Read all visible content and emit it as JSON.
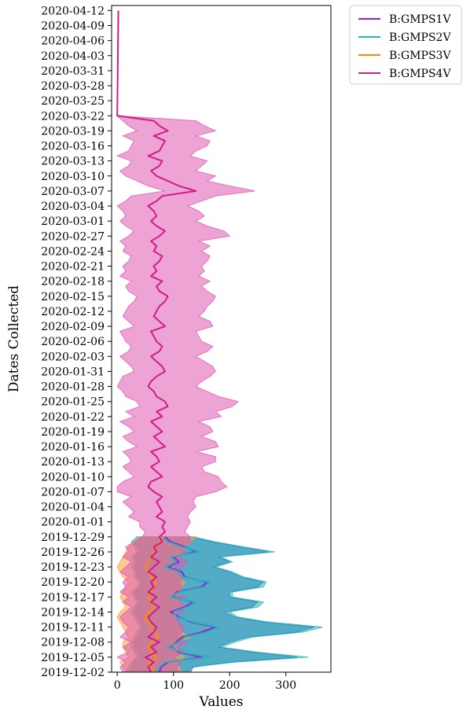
{
  "chart_data": {
    "type": "line",
    "orientation": "horizontal-time",
    "xlabel": "Values",
    "ylabel": "Dates Collected",
    "xlim": [
      -10,
      380
    ],
    "ylim": [
      "2019-12-02",
      "2020-04-13"
    ],
    "x_ticks": [
      0,
      100,
      200,
      300
    ],
    "y_ticks": [
      "2019-12-02",
      "2019-12-05",
      "2019-12-08",
      "2019-12-11",
      "2019-12-14",
      "2019-12-17",
      "2019-12-20",
      "2019-12-23",
      "2019-12-26",
      "2019-12-29",
      "2020-01-01",
      "2020-01-04",
      "2020-01-07",
      "2020-01-10",
      "2020-01-13",
      "2020-01-16",
      "2020-01-19",
      "2020-01-22",
      "2020-01-25",
      "2020-01-28",
      "2020-01-31",
      "2020-02-03",
      "2020-02-06",
      "2020-02-09",
      "2020-02-12",
      "2020-02-15",
      "2020-02-18",
      "2020-02-21",
      "2020-02-24",
      "2020-02-27",
      "2020-03-01",
      "2020-03-04",
      "2020-03-07",
      "2020-03-10",
      "2020-03-13",
      "2020-03-16",
      "2020-03-19",
      "2020-03-22",
      "2020-03-25",
      "2020-03-28",
      "2020-03-31",
      "2020-04-03",
      "2020-04-06",
      "2020-04-09",
      "2020-04-12"
    ],
    "grid": false,
    "legend_position": "outside-top-right",
    "series": [
      {
        "name": "B:GMPS1V",
        "color": "#9b1fd6",
        "fill_color": "#3050b0",
        "dates": [
          "2019-12-02",
          "2019-12-03",
          "2019-12-04",
          "2019-12-05",
          "2019-12-06",
          "2019-12-07",
          "2019-12-08",
          "2019-12-09",
          "2019-12-10",
          "2019-12-11",
          "2019-12-12",
          "2019-12-13",
          "2019-12-14",
          "2019-12-15",
          "2019-12-16",
          "2019-12-17",
          "2019-12-18",
          "2019-12-19",
          "2019-12-20",
          "2019-12-21",
          "2019-12-22",
          "2019-12-23",
          "2019-12-24",
          "2019-12-25",
          "2019-12-26",
          "2019-12-27",
          "2019-12-28",
          "2019-12-29"
        ],
        "mean": [
          75,
          78,
          90,
          150,
          110,
          95,
          105,
          115,
          150,
          175,
          130,
          110,
          95,
          120,
          135,
          100,
          105,
          150,
          160,
          120,
          115,
          90,
          110,
          100,
          140,
          120,
          95,
          85
        ],
        "lower": [
          20,
          25,
          30,
          40,
          35,
          30,
          30,
          35,
          40,
          45,
          40,
          35,
          30,
          35,
          40,
          35,
          30,
          40,
          45,
          35,
          35,
          30,
          35,
          30,
          40,
          35,
          30,
          40
        ],
        "upper": [
          130,
          135,
          200,
          320,
          240,
          180,
          200,
          230,
          320,
          350,
          260,
          210,
          190,
          240,
          250,
          200,
          200,
          250,
          260,
          220,
          200,
          170,
          200,
          180,
          270,
          220,
          170,
          130
        ]
      },
      {
        "name": "B:GMPS2V",
        "color": "#26b5b8",
        "fill_color": "#26b5b8",
        "dates": [
          "2019-12-02",
          "2019-12-03",
          "2019-12-04",
          "2019-12-05",
          "2019-12-06",
          "2019-12-07",
          "2019-12-08",
          "2019-12-09",
          "2019-12-10",
          "2019-12-11",
          "2019-12-12",
          "2019-12-13",
          "2019-12-14",
          "2019-12-15",
          "2019-12-16",
          "2019-12-17",
          "2019-12-18",
          "2019-12-19",
          "2019-12-20",
          "2019-12-21",
          "2019-12-22",
          "2019-12-23",
          "2019-12-24",
          "2019-12-25",
          "2019-12-26",
          "2019-12-27",
          "2019-12-28",
          "2019-12-29"
        ],
        "mean": [
          70,
          75,
          85,
          165,
          115,
          90,
          110,
          120,
          160,
          180,
          135,
          105,
          100,
          125,
          140,
          95,
          110,
          155,
          165,
          115,
          110,
          85,
          105,
          95,
          150,
          115,
          90,
          80
        ],
        "lower": [
          15,
          20,
          25,
          35,
          30,
          25,
          25,
          30,
          35,
          40,
          35,
          30,
          25,
          30,
          35,
          30,
          25,
          35,
          40,
          30,
          30,
          25,
          30,
          25,
          35,
          30,
          25,
          35
        ],
        "upper": [
          125,
          130,
          210,
          340,
          250,
          185,
          210,
          240,
          330,
          365,
          270,
          215,
          200,
          250,
          260,
          205,
          205,
          260,
          265,
          225,
          205,
          175,
          205,
          185,
          280,
          225,
          175,
          135
        ]
      },
      {
        "name": "B:GMPS3V",
        "color": "#ff8c00",
        "fill_color": "#ffa040",
        "dates": [
          "2019-12-02",
          "2019-12-03",
          "2019-12-04",
          "2019-12-05",
          "2019-12-06",
          "2019-12-07",
          "2019-12-08",
          "2019-12-09",
          "2019-12-10",
          "2019-12-11",
          "2019-12-12",
          "2019-12-13",
          "2019-12-14",
          "2019-12-15",
          "2019-12-16",
          "2019-12-17",
          "2019-12-18",
          "2019-12-19",
          "2019-12-20",
          "2019-12-21",
          "2019-12-22",
          "2019-12-23",
          "2019-12-24",
          "2019-12-25",
          "2019-12-26",
          "2019-12-27",
          "2019-12-28",
          "2019-12-29"
        ],
        "mean": [
          65,
          60,
          55,
          70,
          60,
          55,
          60,
          75,
          65,
          60,
          55,
          50,
          55,
          65,
          60,
          55,
          60,
          65,
          70,
          60,
          55,
          50,
          55,
          60,
          65,
          70,
          75,
          80
        ],
        "lower": [
          15,
          10,
          5,
          20,
          15,
          10,
          10,
          20,
          15,
          10,
          5,
          0,
          5,
          15,
          10,
          5,
          10,
          15,
          20,
          10,
          5,
          0,
          5,
          10,
          15,
          20,
          30,
          40
        ],
        "upper": [
          115,
          110,
          105,
          120,
          110,
          105,
          110,
          130,
          115,
          110,
          105,
          100,
          105,
          115,
          110,
          105,
          110,
          115,
          120,
          110,
          105,
          100,
          105,
          110,
          115,
          120,
          130,
          140
        ]
      },
      {
        "name": "B:GMPS4V",
        "color": "#d01c8b",
        "fill_color": "#de5ab0",
        "dates": [
          "2019-12-02",
          "2019-12-03",
          "2019-12-04",
          "2019-12-05",
          "2019-12-06",
          "2019-12-07",
          "2019-12-08",
          "2019-12-09",
          "2019-12-10",
          "2019-12-11",
          "2019-12-12",
          "2019-12-13",
          "2019-12-14",
          "2019-12-15",
          "2019-12-16",
          "2019-12-17",
          "2019-12-18",
          "2019-12-19",
          "2019-12-20",
          "2019-12-21",
          "2019-12-22",
          "2019-12-23",
          "2019-12-24",
          "2019-12-25",
          "2019-12-26",
          "2019-12-27",
          "2019-12-28",
          "2019-12-29",
          "2019-12-30",
          "2019-12-31",
          "2020-01-01",
          "2020-01-02",
          "2020-01-03",
          "2020-01-04",
          "2020-01-05",
          "2020-01-06",
          "2020-01-07",
          "2020-01-08",
          "2020-01-09",
          "2020-01-10",
          "2020-01-11",
          "2020-01-12",
          "2020-01-13",
          "2020-01-14",
          "2020-01-15",
          "2020-01-16",
          "2020-01-17",
          "2020-01-18",
          "2020-01-19",
          "2020-01-20",
          "2020-01-21",
          "2020-01-22",
          "2020-01-23",
          "2020-01-24",
          "2020-01-25",
          "2020-01-26",
          "2020-01-27",
          "2020-01-28",
          "2020-01-29",
          "2020-01-30",
          "2020-01-31",
          "2020-02-01",
          "2020-02-02",
          "2020-02-03",
          "2020-02-04",
          "2020-02-05",
          "2020-02-06",
          "2020-02-07",
          "2020-02-08",
          "2020-02-09",
          "2020-02-10",
          "2020-02-11",
          "2020-02-12",
          "2020-02-13",
          "2020-02-14",
          "2020-02-15",
          "2020-02-16",
          "2020-02-17",
          "2020-02-18",
          "2020-02-19",
          "2020-02-20",
          "2020-02-21",
          "2020-02-22",
          "2020-02-23",
          "2020-02-24",
          "2020-02-25",
          "2020-02-26",
          "2020-02-27",
          "2020-02-28",
          "2020-02-29",
          "2020-03-01",
          "2020-03-02",
          "2020-03-03",
          "2020-03-04",
          "2020-03-05",
          "2020-03-06",
          "2020-03-07",
          "2020-03-08",
          "2020-03-09",
          "2020-03-10",
          "2020-03-11",
          "2020-03-12",
          "2020-03-13",
          "2020-03-14",
          "2020-03-15",
          "2020-03-16",
          "2020-03-17",
          "2020-03-18",
          "2020-03-19",
          "2020-03-20",
          "2020-03-21",
          "2020-03-22",
          "2020-04-12"
        ],
        "mean": [
          60,
          55,
          65,
          50,
          70,
          60,
          75,
          55,
          65,
          70,
          60,
          55,
          65,
          75,
          60,
          70,
          55,
          65,
          60,
          70,
          55,
          65,
          75,
          60,
          70,
          65,
          80,
          75,
          85,
          80,
          85,
          70,
          80,
          75,
          70,
          80,
          65,
          55,
          60,
          80,
          70,
          60,
          75,
          70,
          60,
          85,
          75,
          65,
          80,
          70,
          60,
          80,
          70,
          90,
          85,
          70,
          65,
          55,
          60,
          70,
          85,
          80,
          70,
          60,
          75,
          80,
          70,
          65,
          60,
          85,
          75,
          65,
          70,
          75,
          85,
          90,
          75,
          70,
          80,
          60,
          70,
          65,
          75,
          80,
          65,
          70,
          60,
          75,
          85,
          70,
          60,
          70,
          65,
          55,
          70,
          80,
          140,
          110,
          90,
          70,
          60,
          75,
          80,
          55,
          75,
          80,
          85,
          65,
          90,
          75,
          65,
          0,
          2
        ],
        "lower": [
          10,
          5,
          15,
          0,
          20,
          10,
          25,
          5,
          15,
          20,
          10,
          5,
          15,
          25,
          10,
          20,
          5,
          15,
          10,
          20,
          5,
          15,
          25,
          10,
          20,
          15,
          30,
          45,
          50,
          40,
          40,
          20,
          30,
          20,
          10,
          25,
          0,
          0,
          10,
          30,
          20,
          10,
          25,
          20,
          10,
          35,
          20,
          10,
          30,
          20,
          5,
          30,
          15,
          40,
          35,
          15,
          10,
          0,
          5,
          10,
          30,
          25,
          15,
          5,
          20,
          25,
          15,
          10,
          5,
          30,
          20,
          10,
          15,
          20,
          30,
          35,
          20,
          15,
          25,
          5,
          15,
          10,
          20,
          25,
          10,
          15,
          5,
          20,
          30,
          15,
          5,
          15,
          10,
          0,
          15,
          25,
          85,
          55,
          35,
          15,
          5,
          20,
          25,
          0,
          20,
          25,
          30,
          10,
          35,
          20,
          10,
          0,
          2
        ],
        "upper": [
          110,
          105,
          115,
          100,
          120,
          110,
          125,
          105,
          115,
          120,
          110,
          105,
          115,
          125,
          110,
          120,
          105,
          115,
          110,
          120,
          105,
          115,
          125,
          110,
          120,
          115,
          130,
          130,
          120,
          125,
          130,
          125,
          130,
          140,
          135,
          140,
          175,
          195,
          185,
          180,
          155,
          150,
          175,
          175,
          140,
          180,
          175,
          150,
          170,
          165,
          145,
          185,
          175,
          205,
          215,
          180,
          160,
          140,
          150,
          165,
          175,
          170,
          155,
          140,
          160,
          170,
          150,
          145,
          140,
          170,
          165,
          145,
          155,
          160,
          170,
          175,
          160,
          150,
          165,
          145,
          155,
          150,
          160,
          165,
          150,
          165,
          145,
          200,
          190,
          160,
          140,
          155,
          145,
          125,
          150,
          175,
          245,
          200,
          160,
          175,
          140,
          150,
          160,
          130,
          140,
          160,
          165,
          140,
          175,
          155,
          140,
          0,
          2
        ]
      }
    ]
  }
}
